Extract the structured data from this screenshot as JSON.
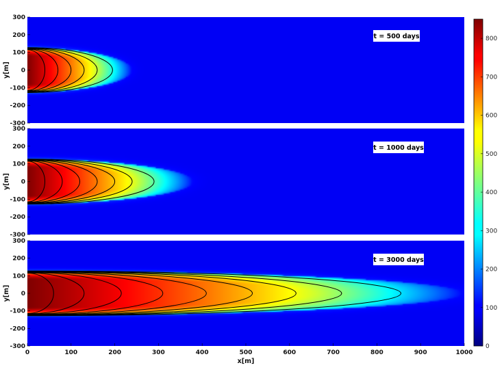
{
  "chart_data": {
    "type": "heatmap",
    "xlabel": "x[m]",
    "ylabel": "y[m]",
    "xlim": [
      0,
      1000
    ],
    "ylim": [
      -300,
      300
    ],
    "xticks": [
      0,
      100,
      200,
      300,
      400,
      500,
      600,
      700,
      800,
      900,
      1000
    ],
    "yticks": [
      300,
      200,
      100,
      0,
      -100,
      -200,
      -300
    ],
    "yticklabels": [
      "300",
      "200",
      "100",
      "0",
      "-100",
      "-200",
      "-300"
    ],
    "colormap": "jet",
    "colorbar": {
      "range": [
        0,
        850
      ],
      "ticks": [
        0,
        100,
        200,
        300,
        400,
        500,
        600,
        700,
        800
      ]
    },
    "source_half_width_m": 125,
    "source_concentration": 850,
    "panels": [
      {
        "label": "t = 500 days",
        "plume_length_m": 240,
        "contour_x_extents": [
          40,
          70,
          100,
          130,
          160,
          195
        ]
      },
      {
        "label": "t = 1000 days",
        "plume_length_m": 380,
        "contour_x_extents": [
          40,
          80,
          120,
          160,
          200,
          240,
          290
        ]
      },
      {
        "label": "t = 3000 days",
        "plume_length_m": 1000,
        "contour_x_extents": [
          60,
          130,
          215,
          310,
          410,
          515,
          615,
          720,
          855
        ]
      }
    ]
  }
}
